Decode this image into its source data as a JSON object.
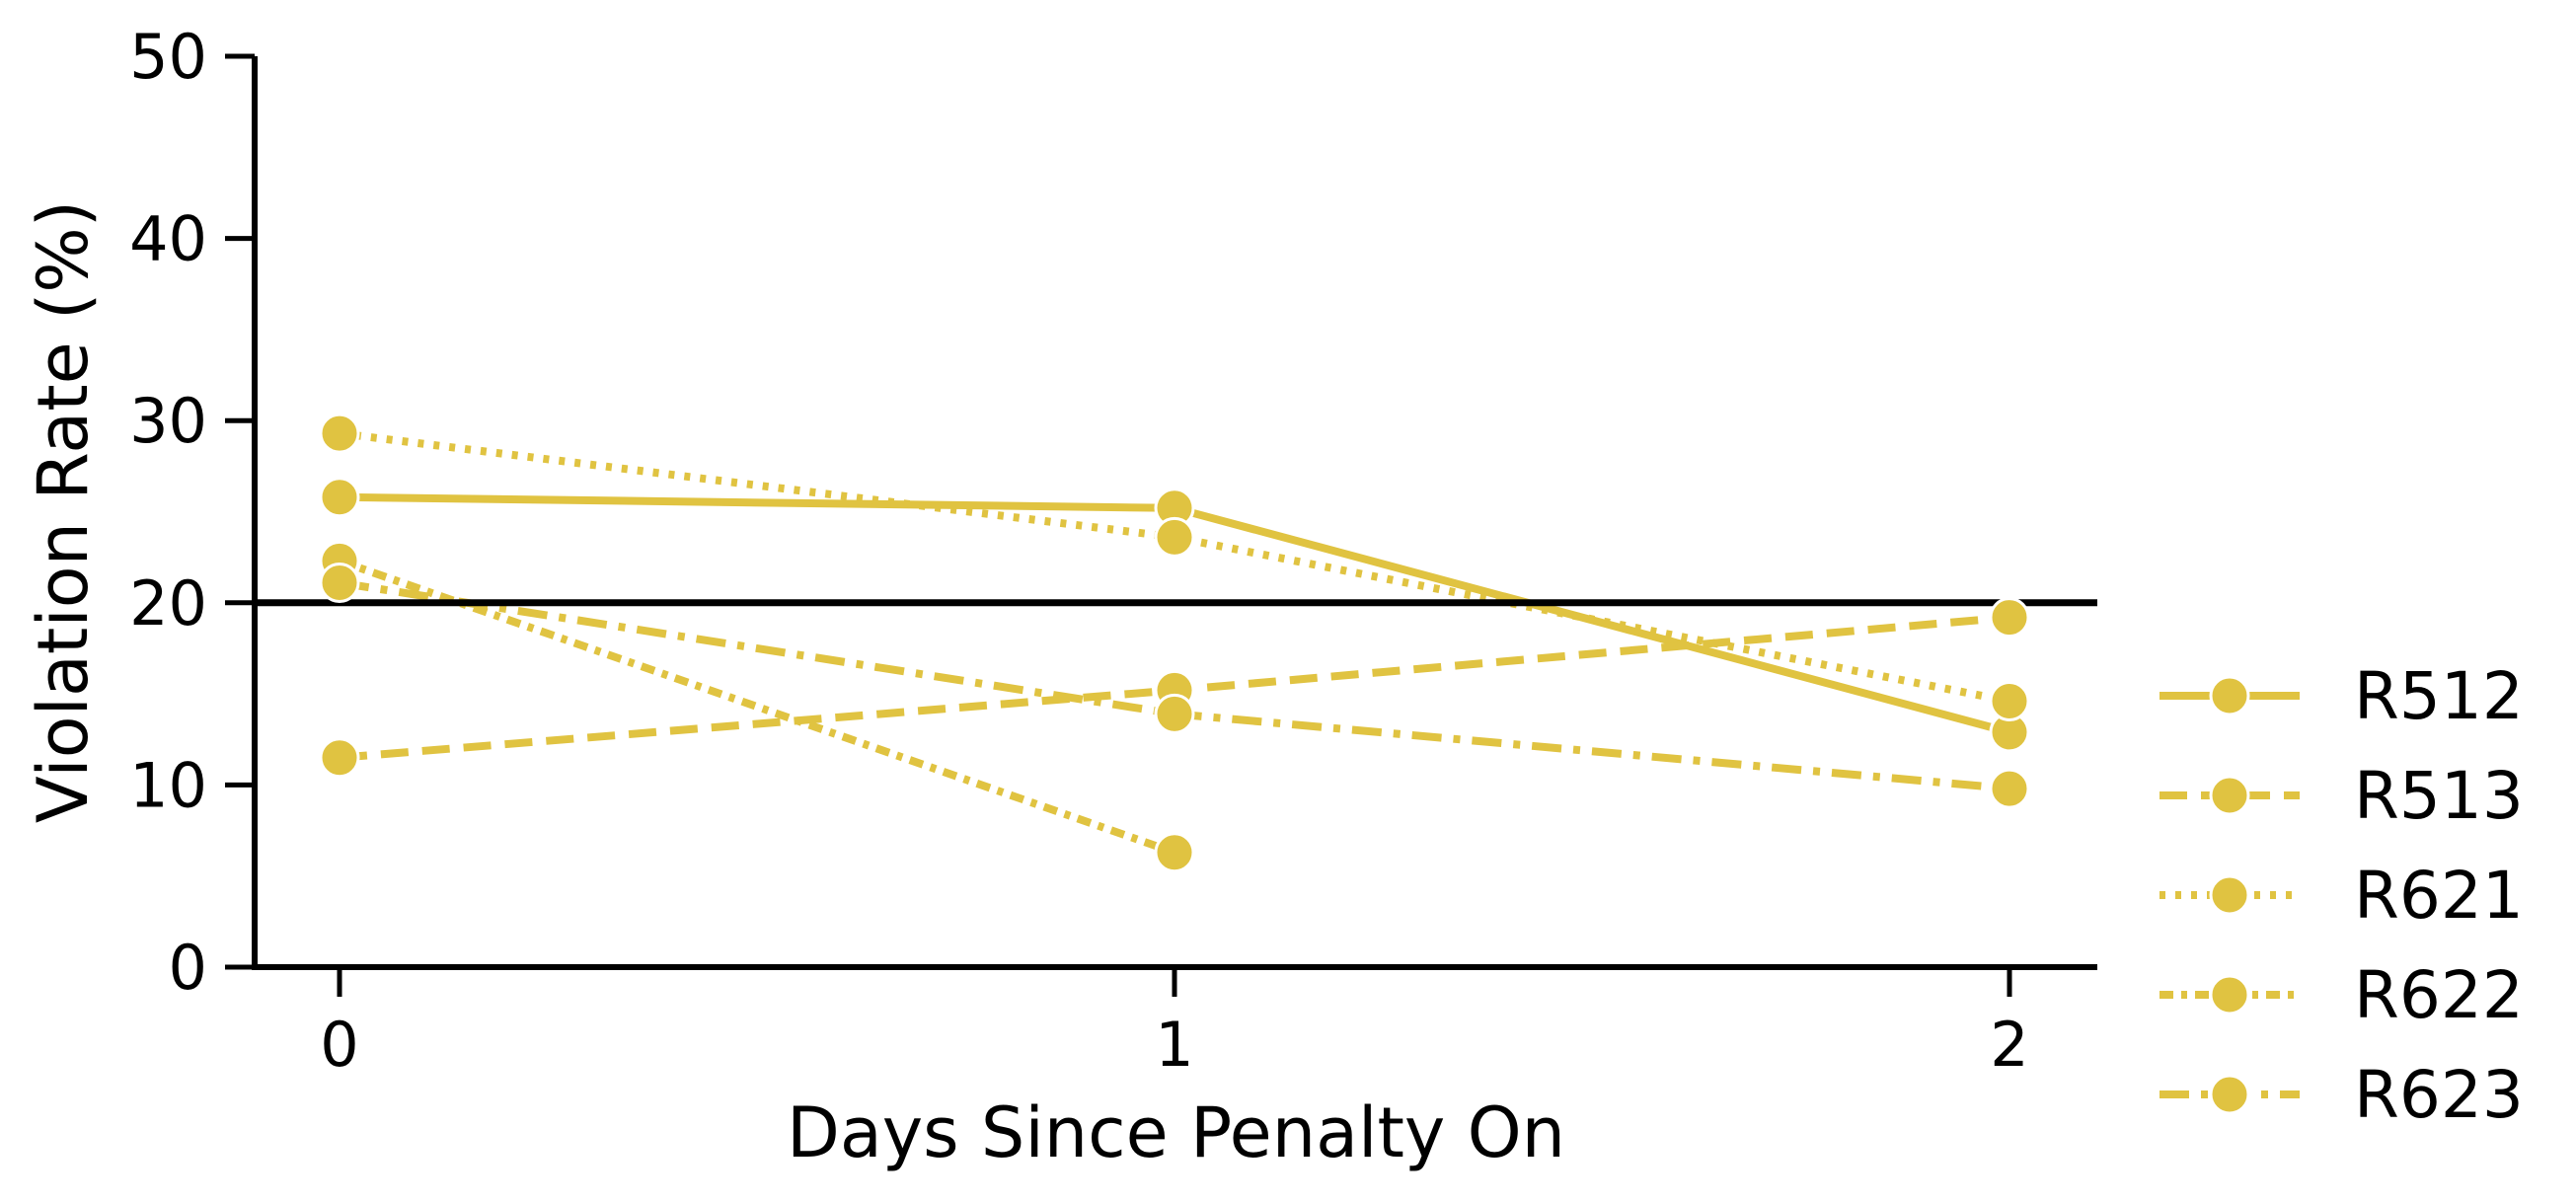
{
  "chart_data": {
    "type": "line",
    "title": "",
    "xlabel": "Days Since Penalty On",
    "ylabel": "Violation Rate (%)",
    "x": [
      0,
      1,
      2
    ],
    "x_ticks": [
      "0",
      "1",
      "2"
    ],
    "ylim": [
      0,
      50
    ],
    "y_ticks": [
      "0",
      "10",
      "20",
      "30",
      "40",
      "50"
    ],
    "reference_line": {
      "y": 20,
      "color": "#000000"
    },
    "grid": false,
    "legend": {
      "placement": "right",
      "entries": [
        "R512",
        "R513",
        "R621",
        "R622",
        "R623"
      ]
    },
    "series_color": "#E0C341",
    "marker": "circle",
    "series": [
      {
        "name": "R512",
        "linestyle": "solid",
        "values": [
          25.8,
          25.2,
          12.9
        ]
      },
      {
        "name": "R513",
        "linestyle": "dashed",
        "values": [
          11.5,
          15.2,
          19.2
        ]
      },
      {
        "name": "R621",
        "linestyle": "dotted",
        "values": [
          29.3,
          23.6,
          14.6
        ]
      },
      {
        "name": "R622",
        "linestyle": "dashdot-short",
        "values": [
          22.3,
          6.3,
          null
        ]
      },
      {
        "name": "R623",
        "linestyle": "dashdot",
        "values": [
          21.1,
          13.9,
          9.8
        ]
      }
    ]
  }
}
